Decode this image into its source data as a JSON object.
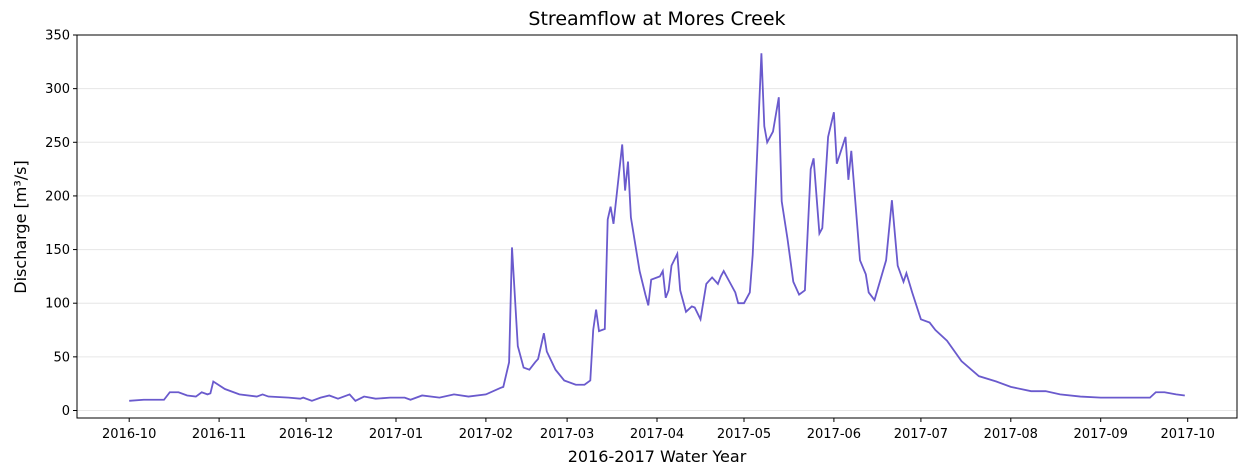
{
  "chart_data": {
    "type": "line",
    "title": "Streamflow at Mores Creek",
    "xlabel": "2016-2017 Water Year",
    "ylabel": "Discharge [m³/s]",
    "x": [
      "2016-10-01",
      "2016-10-06",
      "2016-10-13",
      "2016-10-15",
      "2016-10-18",
      "2016-10-21",
      "2016-10-24",
      "2016-10-26",
      "2016-10-28",
      "2016-10-29",
      "2016-10-30",
      "2016-11-03",
      "2016-11-08",
      "2016-11-14",
      "2016-11-16",
      "2016-11-18",
      "2016-11-25",
      "2016-11-29",
      "2016-11-30",
      "2016-12-03",
      "2016-12-06",
      "2016-12-09",
      "2016-12-12",
      "2016-12-16",
      "2016-12-18",
      "2016-12-21",
      "2016-12-25",
      "2016-12-30",
      "2017-01-04",
      "2017-01-06",
      "2017-01-10",
      "2017-01-16",
      "2017-01-21",
      "2017-01-26",
      "2017-02-01",
      "2017-02-06",
      "2017-02-07",
      "2017-02-09",
      "2017-02-10",
      "2017-02-12",
      "2017-02-14",
      "2017-02-16",
      "2017-02-18",
      "2017-02-19",
      "2017-02-21",
      "2017-02-22",
      "2017-02-25",
      "2017-02-28",
      "2017-03-04",
      "2017-03-07",
      "2017-03-09",
      "2017-03-10",
      "2017-03-11",
      "2017-03-12",
      "2017-03-14",
      "2017-03-15",
      "2017-03-16",
      "2017-03-17",
      "2017-03-20",
      "2017-03-21",
      "2017-03-22",
      "2017-03-23",
      "2017-03-26",
      "2017-03-28",
      "2017-03-29",
      "2017-03-30",
      "2017-04-02",
      "2017-04-03",
      "2017-04-04",
      "2017-04-05",
      "2017-04-06",
      "2017-04-08",
      "2017-04-09",
      "2017-04-11",
      "2017-04-13",
      "2017-04-14",
      "2017-04-16",
      "2017-04-18",
      "2017-04-20",
      "2017-04-22",
      "2017-04-23",
      "2017-04-24",
      "2017-04-26",
      "2017-04-28",
      "2017-04-29",
      "2017-05-01",
      "2017-05-03",
      "2017-05-04",
      "2017-05-05",
      "2017-05-07",
      "2017-05-08",
      "2017-05-09",
      "2017-05-11",
      "2017-05-13",
      "2017-05-14",
      "2017-05-16",
      "2017-05-18",
      "2017-05-20",
      "2017-05-22",
      "2017-05-24",
      "2017-05-25",
      "2017-05-27",
      "2017-05-28",
      "2017-05-30",
      "2017-06-01",
      "2017-06-02",
      "2017-06-05",
      "2017-06-06",
      "2017-06-07",
      "2017-06-10",
      "2017-06-12",
      "2017-06-13",
      "2017-06-15",
      "2017-06-19",
      "2017-06-21",
      "2017-06-23",
      "2017-06-25",
      "2017-06-26",
      "2017-06-28",
      "2017-07-01",
      "2017-07-04",
      "2017-07-06",
      "2017-07-10",
      "2017-07-15",
      "2017-07-21",
      "2017-07-27",
      "2017-08-01",
      "2017-08-08",
      "2017-08-13",
      "2017-08-18",
      "2017-08-25",
      "2017-09-01",
      "2017-09-08",
      "2017-09-15",
      "2017-09-18",
      "2017-09-20",
      "2017-09-23",
      "2017-09-27",
      "2017-09-30"
    ],
    "series": [
      {
        "name": "Discharge",
        "color": "#6a5acd",
        "values": [
          9,
          10,
          10,
          17,
          17,
          14,
          13,
          17,
          15,
          16,
          27,
          20,
          15,
          13,
          15,
          13,
          12,
          11,
          12,
          9,
          12,
          14,
          11,
          15,
          9,
          13,
          11,
          12,
          12,
          10,
          14,
          12,
          15,
          13,
          15,
          21,
          22,
          45,
          152,
          60,
          40,
          38,
          45,
          48,
          72,
          55,
          38,
          28,
          24,
          24,
          28,
          75,
          94,
          74,
          76,
          178,
          190,
          174,
          248,
          205,
          232,
          180,
          130,
          108,
          98,
          122,
          125,
          130,
          105,
          112,
          135,
          146,
          112,
          92,
          97,
          96,
          85,
          118,
          124,
          118,
          125,
          130,
          120,
          110,
          100,
          100,
          110,
          145,
          205,
          333,
          265,
          250,
          260,
          292,
          195,
          160,
          120,
          108,
          112,
          225,
          235,
          165,
          170,
          255,
          278,
          230,
          255,
          215,
          242,
          140,
          127,
          110,
          103,
          140,
          196,
          135,
          120,
          128,
          110,
          85,
          82,
          75,
          65,
          46,
          32,
          27,
          22,
          18,
          18,
          15,
          13,
          12,
          12,
          12,
          12,
          17,
          17,
          15,
          14
        ]
      }
    ],
    "xlim": [
      "2016-09-13",
      "2017-10-18"
    ],
    "xticks": [
      {
        "value": "2016-10-01",
        "label": "2016-10"
      },
      {
        "value": "2016-11-01",
        "label": "2016-11"
      },
      {
        "value": "2016-12-01",
        "label": "2016-12"
      },
      {
        "value": "2017-01-01",
        "label": "2017-01"
      },
      {
        "value": "2017-02-01",
        "label": "2017-02"
      },
      {
        "value": "2017-03-01",
        "label": "2017-03"
      },
      {
        "value": "2017-04-01",
        "label": "2017-04"
      },
      {
        "value": "2017-05-01",
        "label": "2017-05"
      },
      {
        "value": "2017-06-01",
        "label": "2017-06"
      },
      {
        "value": "2017-07-01",
        "label": "2017-07"
      },
      {
        "value": "2017-08-01",
        "label": "2017-08"
      },
      {
        "value": "2017-09-01",
        "label": "2017-09"
      },
      {
        "value": "2017-10-01",
        "label": "2017-10"
      }
    ],
    "ylim": [
      -7,
      350
    ],
    "yticks": [
      0,
      50,
      100,
      150,
      200,
      250,
      300,
      350
    ],
    "grid": true
  }
}
